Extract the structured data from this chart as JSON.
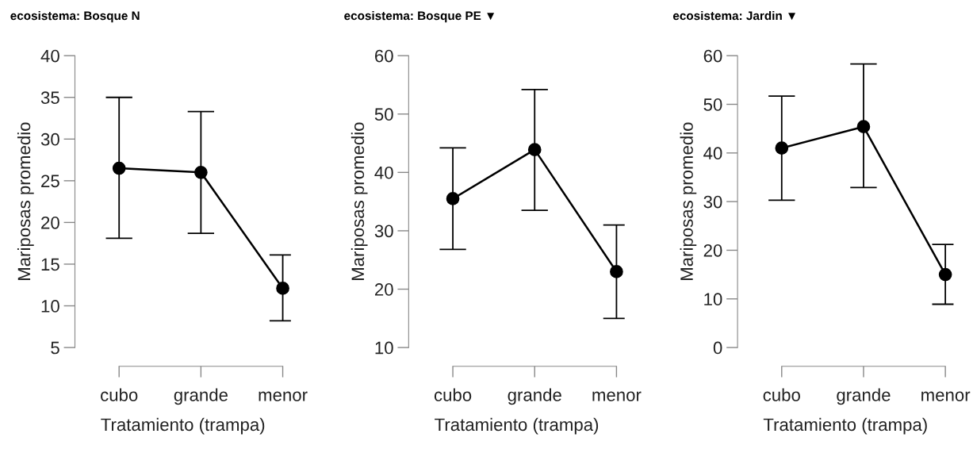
{
  "chart_data": [
    {
      "type": "line",
      "title": "ecosistema: Bosque N",
      "xlabel": "Tratamiento (trampa)",
      "ylabel": "Mariposas promedio",
      "categories": [
        "cubo",
        "grande",
        "menor"
      ],
      "ylim": [
        5,
        40
      ],
      "yticks": [
        5,
        10,
        15,
        20,
        25,
        30,
        35,
        40
      ],
      "marker": "circle",
      "line_style": "solid",
      "grid": false,
      "legend": false,
      "series": [
        {
          "color": "#000000",
          "values": [
            26.5,
            26.0,
            12.1
          ],
          "errors": [
            [
              18.1,
              35.0
            ],
            [
              18.7,
              33.3
            ],
            [
              8.2,
              16.1
            ]
          ]
        }
      ]
    },
    {
      "type": "line",
      "title": "ecosistema: Bosque PE ▼",
      "xlabel": "Tratamiento (trampa)",
      "ylabel": "Mariposas promedio",
      "categories": [
        "cubo",
        "grande",
        "menor"
      ],
      "ylim": [
        10,
        60
      ],
      "yticks": [
        10,
        20,
        30,
        40,
        50,
        60
      ],
      "marker": "circle",
      "line_style": "solid",
      "grid": false,
      "legend": false,
      "series": [
        {
          "color": "#000000",
          "values": [
            35.5,
            43.9,
            23.0
          ],
          "errors": [
            [
              26.8,
              44.2
            ],
            [
              33.5,
              54.2
            ],
            [
              15.0,
              31.0
            ]
          ]
        }
      ]
    },
    {
      "type": "line",
      "title": "ecosistema: Jardin ▼",
      "xlabel": "Tratamiento (trampa)",
      "ylabel": "Mariposas promedio",
      "categories": [
        "cubo",
        "grande",
        "menor"
      ],
      "ylim": [
        0,
        60
      ],
      "yticks": [
        0,
        10,
        20,
        30,
        40,
        50,
        60
      ],
      "marker": "circle",
      "line_style": "solid",
      "grid": false,
      "legend": false,
      "series": [
        {
          "color": "#000000",
          "values": [
            41.0,
            45.4,
            15.0
          ],
          "errors": [
            [
              30.3,
              51.7
            ],
            [
              32.9,
              58.3
            ],
            [
              8.9,
              21.2
            ]
          ]
        }
      ]
    }
  ]
}
